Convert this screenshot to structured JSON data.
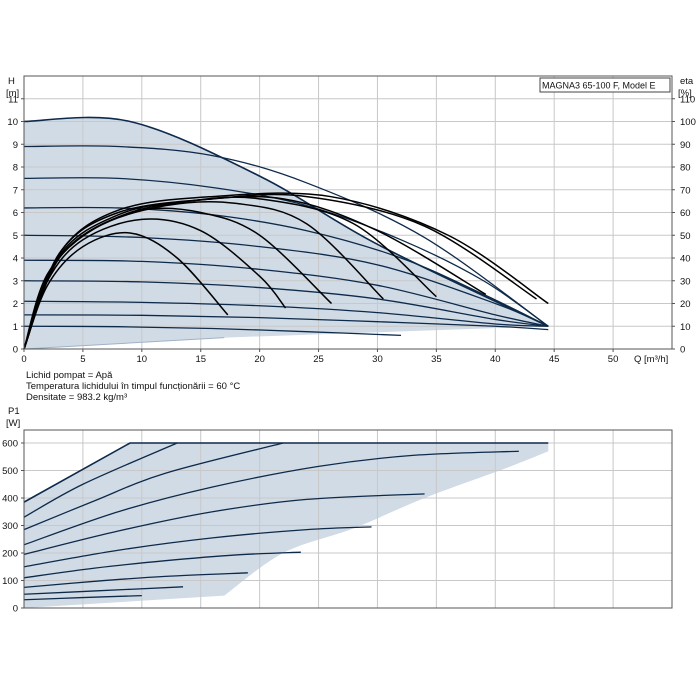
{
  "colors": {
    "region": "#d0dbe6",
    "curve": "#0e2a4a",
    "eta_curve": "#000000",
    "grid": "#c8c8c8",
    "frame": "#555555"
  },
  "model": "MAGNA3 65-100 F, Model E",
  "notes": [
    "Lichid pompat = Apă",
    "Temperatura lichidului în timpul funcționării = 60 °C",
    "Densitate = 983.2 kg/m³"
  ],
  "chart_data": [
    {
      "type": "line",
      "title": "",
      "xlabel": "Q [m³/h]",
      "ylabel": [
        "H",
        "[m]"
      ],
      "y2label": [
        "eta",
        "[%]"
      ],
      "xlim": [
        0,
        55
      ],
      "ylim": [
        0,
        12
      ],
      "y2lim": [
        0,
        120
      ],
      "grid": true,
      "xticks": [
        "0",
        "5",
        "10",
        "15",
        "20",
        "25",
        "30",
        "35",
        "40",
        "45",
        "50"
      ],
      "yticks": [
        "0",
        "1",
        "2",
        "3",
        "4",
        "5",
        "6",
        "7",
        "8",
        "9",
        "10",
        "11"
      ],
      "y2ticks": [
        "0",
        "10",
        "20",
        "30",
        "40",
        "50",
        "60",
        "70",
        "80",
        "90",
        "100",
        "110"
      ],
      "operating_region": {
        "x": [
          0,
          9,
          44.5,
          17
        ],
        "y": [
          10,
          10,
          1,
          0.5
        ]
      },
      "head_curves": [
        {
          "h0": 10.0,
          "x": [
            0,
            9,
            20,
            30,
            44.5
          ],
          "y": [
            10,
            10,
            7.6,
            4.6,
            1
          ]
        },
        {
          "h0": 8.9,
          "x": [
            0,
            8,
            16,
            24,
            34,
            44.5
          ],
          "y": [
            8.9,
            8.9,
            8.5,
            7.3,
            4.9,
            1
          ]
        },
        {
          "h0": 7.5,
          "x": [
            0,
            8,
            16,
            24,
            32,
            39,
            44.5
          ],
          "y": [
            7.5,
            7.5,
            7.1,
            6.3,
            4.8,
            3.0,
            1
          ]
        },
        {
          "h0": 6.2,
          "x": [
            0,
            8,
            16,
            24,
            32,
            39,
            44.5
          ],
          "y": [
            6.2,
            6.2,
            5.9,
            5.2,
            4.0,
            2.4,
            1
          ]
        },
        {
          "h0": 5.0,
          "x": [
            0,
            10,
            20,
            30,
            40,
            44.5
          ],
          "y": [
            5.0,
            4.9,
            4.5,
            3.7,
            2.0,
            1
          ]
        },
        {
          "h0": 3.9,
          "x": [
            0,
            10,
            20,
            30,
            40,
            44.5
          ],
          "y": [
            3.9,
            3.85,
            3.5,
            2.8,
            1.5,
            1
          ]
        },
        {
          "h0": 3.0,
          "x": [
            0,
            10,
            20,
            30,
            40,
            44.5
          ],
          "y": [
            3.0,
            2.95,
            2.7,
            2.2,
            1.3,
            1
          ]
        },
        {
          "h0": 2.1,
          "x": [
            0,
            10,
            20,
            30,
            40,
            44.5
          ],
          "y": [
            2.1,
            2.05,
            1.9,
            1.6,
            1.1,
            1
          ]
        },
        {
          "h0": 1.5,
          "x": [
            0,
            10,
            20,
            30,
            40,
            44.5
          ],
          "y": [
            1.5,
            1.48,
            1.38,
            1.2,
            1.0,
            0.85
          ]
        },
        {
          "h0": 1.0,
          "x": [
            0,
            8,
            16,
            24,
            32
          ],
          "y": [
            1.0,
            0.98,
            0.9,
            0.76,
            0.6
          ]
        }
      ],
      "eta_curves": [
        {
          "x": [
            0,
            2,
            5,
            9,
            13,
            17.3
          ],
          "eta": [
            0,
            28,
            45,
            51,
            40,
            15
          ]
        },
        {
          "x": [
            0,
            2,
            5,
            10,
            15,
            20,
            22.2
          ],
          "eta": [
            0,
            30,
            48,
            57,
            52,
            32,
            18
          ]
        },
        {
          "x": [
            0,
            2,
            5,
            10,
            15,
            20,
            26.1
          ],
          "eta": [
            0,
            32,
            50,
            61,
            60,
            50,
            20
          ]
        },
        {
          "x": [
            0,
            2,
            6,
            12,
            18,
            24,
            30.5
          ],
          "eta": [
            0,
            33,
            53,
            63,
            64,
            55,
            22
          ]
        },
        {
          "x": [
            0,
            3,
            8,
            14,
            20,
            28,
            35.0
          ],
          "eta": [
            0,
            40,
            58,
            65,
            66,
            55,
            23
          ]
        },
        {
          "x": [
            0,
            3,
            8,
            14,
            22,
            30,
            39.2
          ],
          "eta": [
            0,
            41,
            59,
            65,
            66,
            52,
            24
          ]
        },
        {
          "x": [
            0,
            3,
            8,
            16,
            24,
            34,
            43.5
          ],
          "eta": [
            0,
            42,
            60,
            66,
            67,
            54,
            22
          ]
        },
        {
          "x": [
            0,
            3,
            8,
            16,
            26,
            36,
            44.5
          ],
          "eta": [
            0,
            42,
            61,
            67,
            67,
            50,
            20
          ]
        }
      ]
    },
    {
      "type": "line",
      "title": "",
      "xlabel": "",
      "ylabel": [
        "P1",
        "[W]"
      ],
      "xlim": [
        0,
        55
      ],
      "ylim": [
        0,
        600
      ],
      "grid": true,
      "yticks": [
        "0",
        "100",
        "200",
        "300",
        "400",
        "500",
        "600"
      ],
      "operating_region": {
        "x": [
          0,
          9,
          44.5,
          44.5,
          41,
          34,
          28,
          22,
          17
        ],
        "y": [
          385,
          600,
          600,
          570,
          510,
          400,
          290,
          200,
          45
        ]
      },
      "power_curves": [
        {
          "x": [
            0,
            9,
            44.5
          ],
          "y": [
            385,
            600,
            600
          ]
        },
        {
          "x": [
            0,
            5,
            13.0
          ],
          "y": [
            330,
            450,
            600
          ]
        },
        {
          "x": [
            0,
            6,
            12,
            22.0
          ],
          "y": [
            285,
            390,
            490,
            600
          ]
        },
        {
          "x": [
            0,
            8,
            16,
            25,
            33,
            42
          ],
          "y": [
            230,
            350,
            440,
            515,
            555,
            570
          ]
        },
        {
          "x": [
            0,
            8,
            16,
            24,
            34
          ],
          "y": [
            195,
            280,
            350,
            395,
            415
          ]
        },
        {
          "x": [
            0,
            8,
            16,
            24,
            29.5
          ],
          "y": [
            150,
            210,
            255,
            285,
            295
          ]
        },
        {
          "x": [
            0,
            6,
            12,
            18,
            23.5
          ],
          "y": [
            110,
            145,
            172,
            193,
            203
          ]
        },
        {
          "x": [
            0,
            6,
            12,
            19.0
          ],
          "y": [
            75,
            97,
            115,
            128
          ]
        },
        {
          "x": [
            0,
            6,
            13.5
          ],
          "y": [
            50,
            62,
            77
          ]
        },
        {
          "x": [
            0,
            5,
            10.0
          ],
          "y": [
            30,
            38,
            45
          ]
        }
      ]
    }
  ]
}
